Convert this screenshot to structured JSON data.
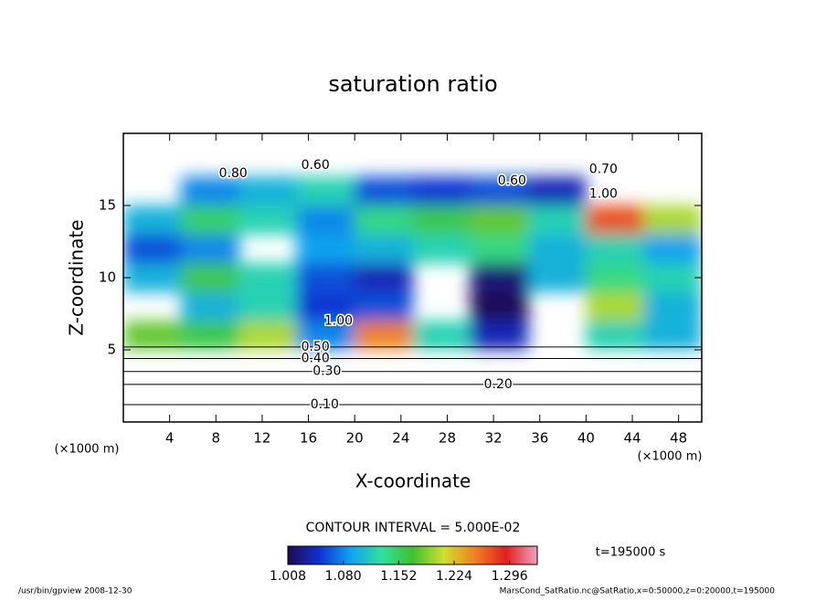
{
  "chart_data": {
    "type": "contour",
    "title": "saturation ratio",
    "xlabel": "X-coordinate",
    "ylabel": "Z-coordinate",
    "unit_label": "(×1000 m)",
    "xlim": [
      0,
      50
    ],
    "ylim": [
      0,
      20
    ],
    "xticks": [
      4,
      8,
      12,
      16,
      20,
      24,
      28,
      32,
      36,
      40,
      44,
      48
    ],
    "yticks": [
      5,
      10,
      15
    ],
    "field": {
      "x": [
        2.5,
        7.5,
        12.5,
        17.5,
        22.5,
        27.5,
        32.5,
        37.5,
        42.5,
        47.5
      ],
      "z": [
        6,
        8,
        10,
        12,
        14,
        16
      ],
      "values": [
        [
          1.18,
          1.16,
          1.2,
          1.08,
          1.25,
          1.12,
          1.04,
          null,
          1.12,
          1.1
        ],
        [
          null,
          1.1,
          1.12,
          1.05,
          1.06,
          null,
          1.01,
          null,
          1.2,
          1.1
        ],
        [
          1.1,
          1.16,
          1.12,
          1.06,
          1.04,
          null,
          1.02,
          1.1,
          1.14,
          1.12
        ],
        [
          1.06,
          1.08,
          null,
          1.09,
          1.1,
          1.12,
          1.14,
          1.1,
          1.12,
          1.09
        ],
        [
          1.1,
          1.15,
          1.12,
          1.08,
          1.14,
          1.16,
          1.18,
          1.12,
          1.27,
          1.2
        ],
        [
          null,
          1.08,
          1.1,
          1.12,
          1.06,
          1.05,
          1.06,
          1.04,
          null,
          null
        ]
      ]
    },
    "contour_labels": [
      {
        "text": "0.10",
        "x": 17.4,
        "z": 1.2
      },
      {
        "text": "0.20",
        "x": 32.4,
        "z": 2.6
      },
      {
        "text": "0.30",
        "x": 17.6,
        "z": 3.5
      },
      {
        "text": "0.40",
        "x": 16.6,
        "z": 4.4
      },
      {
        "text": "0.50",
        "x": 16.6,
        "z": 5.2
      },
      {
        "text": "0.80",
        "x": 9.5,
        "z": 17.2
      },
      {
        "text": "0.60",
        "x": 16.6,
        "z": 17.8
      },
      {
        "text": "0.60",
        "x": 33.6,
        "z": 16.7
      },
      {
        "text": "0.70",
        "x": 41.5,
        "z": 17.5
      },
      {
        "text": "1.00",
        "x": 41.5,
        "z": 15.8
      },
      {
        "text": "1.00",
        "x": 18.6,
        "z": 7.0
      }
    ],
    "contour_interval": "CONTOUR INTERVAL = 5.000E-02",
    "colorbar": {
      "lim": [
        1.008,
        1.332
      ],
      "ticks": [
        1.008,
        {
          "value": 1.08,
          "label": "1.080"
        },
        1.152,
        1.224,
        1.296
      ],
      "colormap": [
        "#200a50",
        "#1030d0",
        "#10a0f0",
        "#30e0a0",
        "#40c030",
        "#d0e030",
        "#f08020",
        "#e02020",
        "#f0a0c0"
      ]
    },
    "time_label": "t=195000 s",
    "footer_left": "/usr/bin/gpview  2008-12-30",
    "footer_right": "MarsCond_SatRatio.nc@SatRatio,x=0:50000,z=0:20000,t=195000"
  }
}
